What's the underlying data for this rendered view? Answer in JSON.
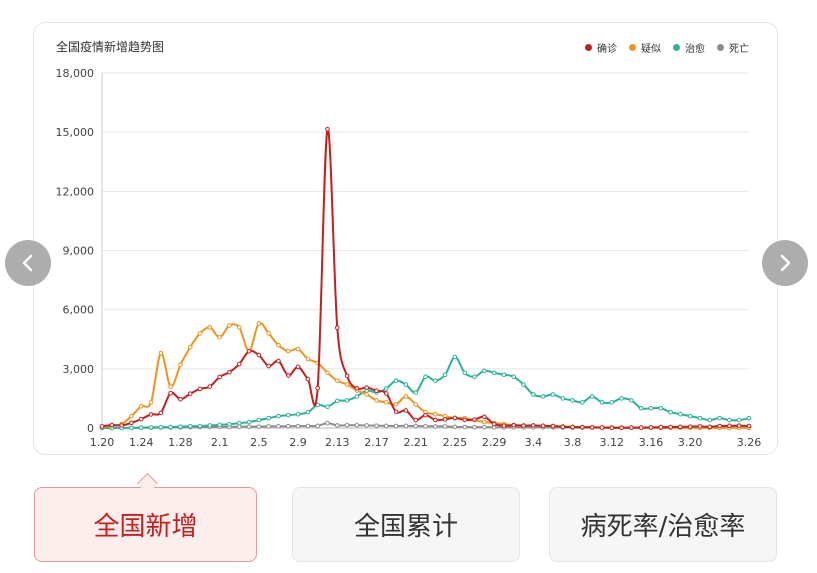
{
  "chart_data": {
    "type": "line",
    "title": "全国疫情新增趋势图",
    "ylim": [
      0,
      18000
    ],
    "yticks": [
      0,
      3000,
      6000,
      9000,
      12000,
      15000,
      18000
    ],
    "ytick_labels": [
      "0",
      "3,000",
      "6,000",
      "9,000",
      "12,000",
      "15,000",
      "18,000"
    ],
    "x": [
      "1.20",
      "1.21",
      "1.22",
      "1.23",
      "1.24",
      "1.25",
      "1.26",
      "1.27",
      "1.28",
      "1.29",
      "1.30",
      "1.31",
      "2.1",
      "2.2",
      "2.3",
      "2.4",
      "2.5",
      "2.6",
      "2.7",
      "2.8",
      "2.9",
      "2.10",
      "2.11",
      "2.12",
      "2.13",
      "2.14",
      "2.15",
      "2.16",
      "2.17",
      "2.18",
      "2.19",
      "2.20",
      "2.21",
      "2.22",
      "2.23",
      "2.24",
      "2.25",
      "2.26",
      "2.27",
      "2.28",
      "2.29",
      "3.1",
      "3.2",
      "3.3",
      "3.4",
      "3.5",
      "3.6",
      "3.7",
      "3.8",
      "3.9",
      "3.10",
      "3.11",
      "3.12",
      "3.13",
      "3.14",
      "3.15",
      "3.16",
      "3.17",
      "3.18",
      "3.19",
      "3.20",
      "3.21",
      "3.22",
      "3.23",
      "3.24",
      "3.25",
      "3.26"
    ],
    "xtick_labels": [
      "1.20",
      "1.24",
      "1.28",
      "2.1",
      "2.5",
      "2.9",
      "2.13",
      "2.17",
      "2.21",
      "2.25",
      "2.29",
      "3.4",
      "3.8",
      "3.12",
      "3.16",
      "3.20",
      "3.26"
    ],
    "legend_position": "top-right",
    "grid": true,
    "series": [
      {
        "name": "确诊",
        "color": "#c81e1e",
        "values": [
          80,
          150,
          130,
          260,
          450,
          690,
          770,
          1770,
          1460,
          1740,
          1980,
          2100,
          2590,
          2830,
          3240,
          3890,
          3700,
          3140,
          3400,
          2660,
          3100,
          2480,
          2020,
          15150,
          5090,
          2640,
          2010,
          2050,
          1890,
          1750,
          820,
          890,
          400,
          650,
          410,
          440,
          510,
          410,
          430,
          570,
          200,
          120,
          140,
          120,
          130,
          110,
          100,
          60,
          50,
          40,
          30,
          20,
          10,
          10,
          20,
          20,
          30,
          40,
          50,
          60,
          70,
          80,
          60,
          100,
          110,
          120,
          100
        ]
      },
      {
        "name": "疑似",
        "color": "#f0941e",
        "values": [
          50,
          100,
          200,
          600,
          1100,
          1300,
          3800,
          2100,
          3200,
          4100,
          4800,
          5100,
          4600,
          5200,
          5100,
          3900,
          5300,
          4800,
          4200,
          3900,
          4000,
          3500,
          3300,
          2800,
          2400,
          2200,
          1900,
          1700,
          1400,
          1300,
          1200,
          1600,
          1200,
          800,
          700,
          600,
          500,
          500,
          400,
          300,
          250,
          200,
          150,
          130,
          120,
          110,
          90,
          80,
          60,
          50,
          40,
          30,
          30,
          20,
          20,
          20,
          20,
          10,
          10,
          10,
          10,
          10,
          10,
          10,
          10,
          10,
          10
        ]
      },
      {
        "name": "治愈",
        "color": "#2db39c",
        "values": [
          0,
          0,
          0,
          10,
          20,
          30,
          40,
          50,
          70,
          90,
          100,
          130,
          160,
          190,
          250,
          300,
          400,
          500,
          600,
          650,
          700,
          800,
          1170,
          1080,
          1370,
          1400,
          1600,
          1900,
          1800,
          2000,
          2400,
          2200,
          1800,
          2600,
          2400,
          2700,
          3600,
          2800,
          2600,
          2900,
          2800,
          2700,
          2600,
          2200,
          1700,
          1600,
          1700,
          1500,
          1400,
          1300,
          1600,
          1300,
          1300,
          1500,
          1400,
          1000,
          1000,
          1000,
          800,
          700,
          600,
          500,
          400,
          500,
          400,
          400,
          500
        ]
      },
      {
        "name": "死亡",
        "color": "#8c8c8c",
        "values": [
          0,
          0,
          0,
          5,
          10,
          15,
          20,
          25,
          30,
          40,
          45,
          50,
          55,
          60,
          65,
          70,
          70,
          80,
          85,
          90,
          95,
          100,
          110,
          250,
          130,
          140,
          140,
          130,
          120,
          110,
          100,
          110,
          100,
          90,
          80,
          80,
          60,
          50,
          40,
          40,
          30,
          30,
          30,
          30,
          30,
          30,
          25,
          25,
          20,
          20,
          20,
          15,
          15,
          15,
          10,
          10,
          10,
          10,
          10,
          10,
          10,
          10,
          10,
          10,
          10,
          10,
          10
        ]
      }
    ]
  },
  "nav": {
    "prev_icon": "chevron-left-icon",
    "next_icon": "chevron-right-icon"
  },
  "tabs": [
    {
      "label": "全国新增"
    },
    {
      "label": "全国累计"
    },
    {
      "label": "病死率/治愈率"
    }
  ]
}
